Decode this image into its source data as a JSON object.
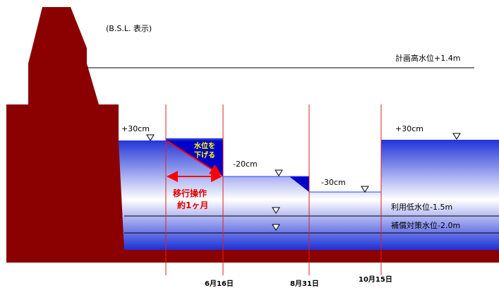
{
  "header": {
    "note": "(B.S.L. 表示)"
  },
  "levels": {
    "flood_plan": "計画高水位+1.4m",
    "utilization_low": "利用低水位-1.5m",
    "compensation": "補償対策水位-2.0m"
  },
  "stage_labels": {
    "start": "+30cm",
    "mid": "-20cm",
    "low": "-30cm",
    "end": "+30cm"
  },
  "lower_box": {
    "line1": "水位を",
    "line2": "下げる"
  },
  "transition": {
    "line1": "移行操作",
    "line2": "約1ヶ月"
  },
  "dates": [
    "6月16日",
    "8月31日",
    "10月15日"
  ],
  "colors": {
    "dam": "#8b0000",
    "water_top": "#1c2fd8",
    "water_mid": "#ffffff",
    "vertical_lines": "#e02020",
    "arrow": "#ff0000"
  }
}
